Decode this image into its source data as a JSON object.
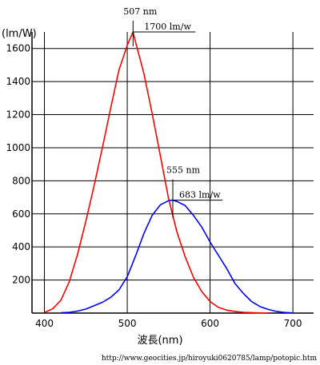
{
  "chart_data": {
    "type": "line",
    "ylabel": "(lm/W)",
    "xlabel": "波長(nm)",
    "xlim": [
      385,
      725
    ],
    "ylim": [
      0,
      1700
    ],
    "xticks": [
      400,
      500,
      600,
      700
    ],
    "yticks": [
      200,
      400,
      600,
      800,
      1000,
      1200,
      1400,
      1600
    ],
    "grid": true,
    "series": [
      {
        "color": "#ff0000",
        "x": [
          400,
          410,
          420,
          430,
          440,
          450,
          460,
          470,
          480,
          490,
          500,
          507,
          510,
          520,
          530,
          540,
          550,
          560,
          570,
          580,
          590,
          600,
          610,
          620,
          630,
          640,
          650,
          660,
          670
        ],
        "y": [
          4,
          26,
          78,
          190,
          355,
          555,
          770,
          1000,
          1240,
          1470,
          1620,
          1700,
          1640,
          1450,
          1210,
          950,
          690,
          490,
          340,
          215,
          130,
          70,
          35,
          18,
          10,
          5,
          3,
          1,
          0
        ]
      },
      {
        "color": "#0000ff",
        "x": [
          420,
          430,
          440,
          450,
          460,
          470,
          480,
          490,
          500,
          510,
          520,
          530,
          540,
          550,
          555,
          560,
          570,
          580,
          590,
          600,
          610,
          620,
          630,
          640,
          650,
          660,
          670,
          680,
          690,
          700
        ],
        "y": [
          2,
          5,
          12,
          24,
          45,
          65,
          95,
          140,
          220,
          345,
          480,
          590,
          655,
          680,
          683,
          675,
          650,
          590,
          520,
          430,
          350,
          270,
          180,
          120,
          70,
          40,
          22,
          10,
          4,
          1
        ]
      }
    ],
    "annotations": [
      {
        "label": "507 nm",
        "x": 507,
        "y": 1700
      },
      {
        "label": "1700 lm/w",
        "x": 507,
        "y": 1700
      },
      {
        "label": "555 nm",
        "x": 555,
        "y": 683
      },
      {
        "label": "683 lm/w",
        "x": 555,
        "y": 683
      }
    ]
  },
  "source_url": "http://www.geocities.jp/hiroyuki0620785/lamp/potopic.htm"
}
